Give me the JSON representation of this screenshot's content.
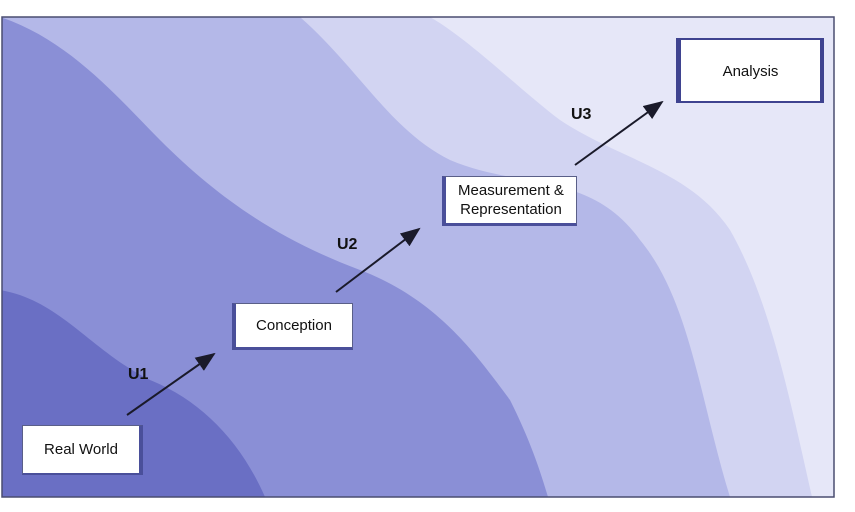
{
  "diagram": {
    "stages": {
      "real_world": "Real World",
      "conception": "Conception",
      "measurement_line1": "Measurement &",
      "measurement_line2": "Representation",
      "analysis": "Analysis"
    },
    "transitions": {
      "u1": "U1",
      "u2": "U2",
      "u3": "U3"
    }
  },
  "colors": {
    "band_darkest": "#6a6fc4",
    "band_dark": "#8a8fd6",
    "band_mid": "#b4b8e8",
    "band_light": "#d2d4f2",
    "band_lightest": "#e6e7f8",
    "arrow": "#1a1a2a",
    "frame_border": "#4a4d70"
  }
}
